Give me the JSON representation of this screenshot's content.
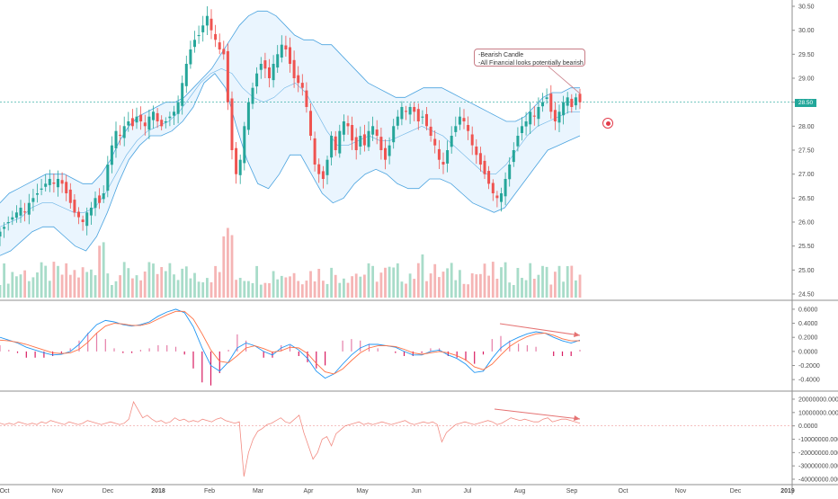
{
  "chart_data": [
    {
      "type": "candlestick",
      "panel": "price",
      "y_axis_ticks": [
        "30.50",
        "30.00",
        "29.50",
        "29.00",
        "28.50",
        "28.00",
        "27.50",
        "27.00",
        "26.50",
        "26.00",
        "25.50",
        "25.00",
        "24.50"
      ],
      "ylim": [
        24.4,
        30.6
      ],
      "x_axis_ticks": [
        "Oct",
        "Nov",
        "Dec",
        "2018",
        "Feb",
        "Mar",
        "Apr",
        "May",
        "Jun",
        "Jul",
        "Aug",
        "Sep",
        "Oct",
        "Nov",
        "Dec",
        "2019"
      ],
      "last_price_label": "28.50",
      "last_price": 28.5,
      "closes": [
        25.8,
        25.9,
        26.0,
        26.1,
        26.2,
        26.3,
        26.2,
        26.4,
        26.5,
        26.6,
        26.7,
        26.8,
        26.9,
        26.8,
        26.9,
        26.8,
        26.6,
        26.4,
        26.2,
        26.1,
        26.0,
        26.2,
        26.3,
        26.5,
        26.4,
        26.6,
        27.2,
        27.6,
        27.9,
        27.8,
        28.0,
        28.1,
        28.0,
        28.2,
        28.1,
        28.0,
        28.2,
        28.3,
        28.1,
        28.0,
        28.1,
        28.2,
        28.3,
        28.5,
        28.9,
        29.3,
        29.6,
        29.8,
        29.9,
        30.1,
        30.3,
        30.0,
        29.8,
        29.6,
        29.5,
        28.5,
        27.5,
        27.0,
        27.3,
        28.0,
        28.5,
        28.8,
        29.1,
        29.3,
        29.2,
        29.0,
        29.3,
        29.5,
        29.7,
        29.6,
        29.3,
        29.0,
        28.9,
        28.8,
        28.4,
        27.8,
        27.2,
        27.0,
        26.9,
        27.3,
        27.8,
        27.5,
        27.9,
        28.1,
        28.0,
        27.7,
        27.5,
        27.8,
        27.6,
        27.9,
        28.0,
        27.8,
        27.5,
        27.3,
        27.6,
        28.0,
        28.2,
        28.4,
        28.3,
        28.4,
        28.3,
        28.1,
        28.2,
        28.0,
        27.8,
        27.6,
        27.3,
        27.2,
        27.5,
        27.8,
        28.0,
        28.2,
        28.1,
        27.9,
        27.6,
        27.4,
        27.2,
        27.0,
        26.8,
        26.6,
        26.5,
        26.6,
        26.9,
        27.2,
        27.5,
        27.8,
        28.0,
        28.1,
        28.3,
        28.2,
        28.4,
        28.5,
        28.6,
        28.3,
        28.1,
        28.3,
        28.5,
        28.6,
        28.4,
        28.6,
        28.5
      ],
      "upper_band": [
        26.4,
        26.6,
        26.7,
        26.8,
        26.9,
        27.0,
        27.0,
        27.0,
        26.9,
        26.8,
        26.8,
        27.0,
        27.3,
        27.7,
        28.0,
        28.2,
        28.3,
        28.4,
        28.5,
        28.5,
        28.6,
        28.8,
        29.0,
        29.2,
        29.5,
        29.8,
        30.1,
        30.3,
        30.4,
        30.4,
        30.3,
        30.1,
        29.9,
        29.8,
        29.8,
        29.7,
        29.7,
        29.5,
        29.3,
        29.1,
        28.9,
        28.8,
        28.7,
        28.6,
        28.6,
        28.7,
        28.8,
        28.8,
        28.8,
        28.7,
        28.6,
        28.5,
        28.4,
        28.3,
        28.2,
        28.1,
        28.1,
        28.2,
        28.4,
        28.6,
        28.7,
        28.7,
        28.8,
        28.8
      ],
      "mid_band": [
        25.9,
        26.0,
        26.1,
        26.3,
        26.4,
        26.4,
        26.3,
        26.2,
        26.2,
        26.3,
        26.6,
        27.0,
        27.4,
        27.7,
        27.9,
        28.0,
        28.1,
        28.3,
        28.6,
        28.9,
        29.1,
        29.2,
        29.1,
        28.8,
        28.6,
        28.5,
        28.6,
        28.8,
        28.9,
        28.7,
        28.3,
        27.9,
        27.6,
        27.6,
        27.7,
        27.8,
        27.7,
        27.7,
        27.8,
        27.9,
        28.0,
        27.9,
        27.8,
        27.6,
        27.4,
        27.2,
        27.0,
        27.0,
        27.2,
        27.5,
        27.8,
        28.0,
        28.1,
        28.2,
        28.3,
        28.3
      ],
      "lower_band": [
        25.3,
        25.4,
        25.6,
        25.8,
        25.9,
        25.9,
        25.7,
        25.5,
        25.4,
        25.7,
        26.2,
        26.8,
        27.3,
        27.6,
        27.8,
        27.8,
        27.9,
        28.1,
        28.4,
        28.9,
        29.1,
        28.8,
        28.0,
        27.3,
        26.8,
        26.7,
        27.0,
        27.4,
        27.4,
        27.0,
        26.6,
        26.4,
        26.5,
        26.8,
        27.0,
        27.1,
        27.0,
        26.8,
        26.7,
        26.7,
        26.9,
        26.9,
        26.8,
        26.6,
        26.4,
        26.3,
        26.2,
        26.3,
        26.6,
        26.9,
        27.2,
        27.5,
        27.6,
        27.7,
        27.8
      ],
      "annotation": [
        "-Bearish Candle",
        "-All Financial looks potentially bearish"
      ]
    },
    {
      "type": "histogram",
      "panel": "macd",
      "y_axis_ticks": [
        "0.6000",
        "0.4000",
        "0.2000",
        "0.0000",
        "-0.2000",
        "-0.4000"
      ],
      "ylim": [
        -0.5,
        0.65
      ],
      "macd": [
        0.2,
        0.16,
        0.12,
        0.06,
        0.02,
        -0.02,
        -0.05,
        -0.04,
        0.0,
        0.1,
        0.25,
        0.38,
        0.44,
        0.42,
        0.38,
        0.36,
        0.38,
        0.42,
        0.5,
        0.56,
        0.6,
        0.55,
        0.35,
        0.05,
        -0.2,
        -0.28,
        -0.15,
        0.05,
        0.12,
        0.08,
        0.0,
        -0.05,
        0.05,
        0.1,
        0.02,
        -0.1,
        -0.28,
        -0.38,
        -0.32,
        -0.18,
        -0.05,
        0.05,
        0.1,
        0.1,
        0.08,
        0.06,
        0.0,
        -0.05,
        -0.05,
        0.0,
        0.02,
        -0.05,
        -0.1,
        -0.18,
        -0.3,
        -0.28,
        -0.1,
        0.05,
        0.14,
        0.2,
        0.25,
        0.28,
        0.26,
        0.2,
        0.15,
        0.12,
        0.16
      ],
      "signal": [
        0.16,
        0.15,
        0.13,
        0.1,
        0.06,
        0.02,
        -0.02,
        -0.03,
        -0.02,
        0.03,
        0.13,
        0.26,
        0.36,
        0.4,
        0.39,
        0.37,
        0.37,
        0.4,
        0.46,
        0.52,
        0.57,
        0.57,
        0.46,
        0.25,
        0.02,
        -0.14,
        -0.16,
        -0.06,
        0.05,
        0.08,
        0.04,
        -0.01,
        0.01,
        0.06,
        0.05,
        -0.03,
        -0.17,
        -0.29,
        -0.32,
        -0.25,
        -0.13,
        -0.02,
        0.05,
        0.08,
        0.08,
        0.07,
        0.03,
        -0.02,
        -0.04,
        -0.02,
        0.0,
        -0.02,
        -0.06,
        -0.12,
        -0.22,
        -0.26,
        -0.18,
        -0.05,
        0.07,
        0.15,
        0.21,
        0.25,
        0.26,
        0.23,
        0.18,
        0.15,
        0.15
      ],
      "divergence_arrow": true
    },
    {
      "type": "line",
      "panel": "volume-oscillator",
      "y_axis_ticks": [
        "20000000.0000",
        "10000000.0000",
        "0.0000",
        "-10000000.0000",
        "-20000000.0000",
        "-30000000.0000",
        "-40000000.0000"
      ],
      "ylim": [
        -40000000,
        22000000
      ],
      "values": [
        2,
        1,
        2,
        1,
        3,
        2,
        1,
        2,
        1,
        3,
        2,
        4,
        3,
        2,
        1,
        3,
        2,
        1,
        2,
        4,
        3,
        2,
        1,
        2,
        3,
        2,
        1,
        2,
        5,
        18,
        12,
        6,
        8,
        5,
        3,
        4,
        2,
        3,
        6,
        4,
        5,
        3,
        4,
        3,
        5,
        4,
        3,
        5,
        6,
        4,
        3,
        2,
        3,
        -38,
        -20,
        -10,
        -4,
        -2,
        1,
        2,
        4,
        6,
        3,
        2,
        5,
        8,
        -5,
        -15,
        -25,
        -20,
        -10,
        -8,
        -15,
        -6,
        -3,
        0,
        1,
        2,
        3,
        1,
        2,
        1,
        2,
        3,
        2,
        1,
        2,
        3,
        4,
        2,
        1,
        2,
        3,
        2,
        3,
        1,
        -12,
        -5,
        -2,
        1,
        2,
        3,
        2,
        1,
        2,
        3,
        4,
        3,
        1,
        2,
        4,
        6,
        5,
        4,
        5,
        4,
        3,
        3,
        5,
        6,
        3,
        4,
        5,
        5,
        4,
        3,
        2
      ],
      "divergence_arrow": true
    }
  ]
}
